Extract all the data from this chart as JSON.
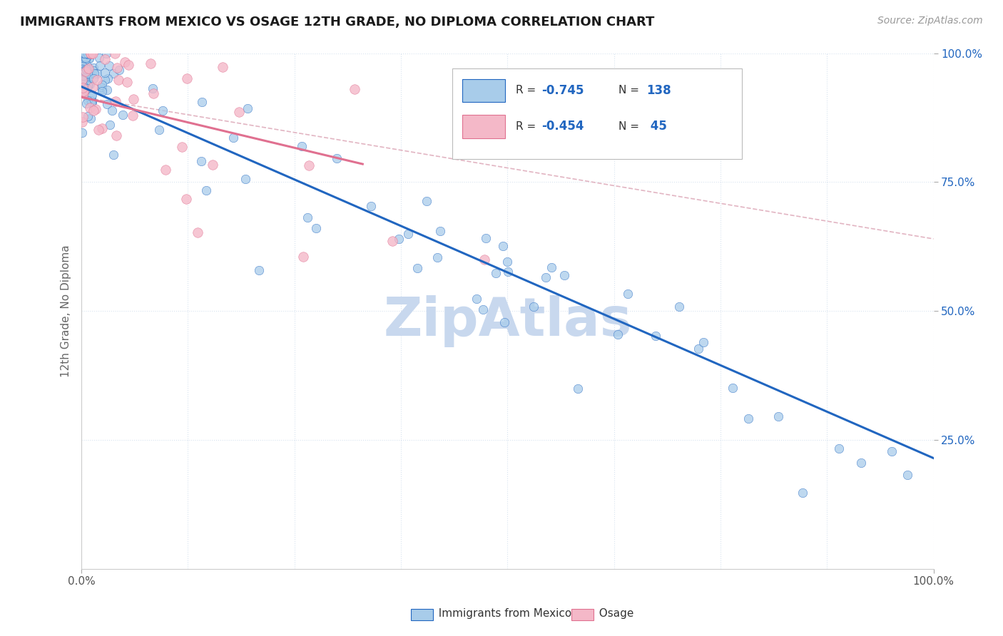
{
  "title": "IMMIGRANTS FROM MEXICO VS OSAGE 12TH GRADE, NO DIPLOMA CORRELATION CHART",
  "source": "Source: ZipAtlas.com",
  "ylabel": "12th Grade, No Diploma",
  "xlim": [
    0.0,
    1.0
  ],
  "ylim": [
    0.0,
    1.0
  ],
  "legend_blue_label": "Immigrants from Mexico",
  "legend_pink_label": "Osage",
  "blue_color": "#A8CCEA",
  "pink_color": "#F4B8C8",
  "trendline_blue": "#2166C0",
  "trendline_pink": "#E07090",
  "trendline_dashed": "#DDA8B8",
  "background_color": "#FFFFFF",
  "grid_color": "#D8E4F0",
  "watermark": "ZipAtlas",
  "watermark_color": "#C8D8EE",
  "blue_r": "-0.745",
  "blue_n": "138",
  "pink_r": "-0.454",
  "pink_n": " 45"
}
